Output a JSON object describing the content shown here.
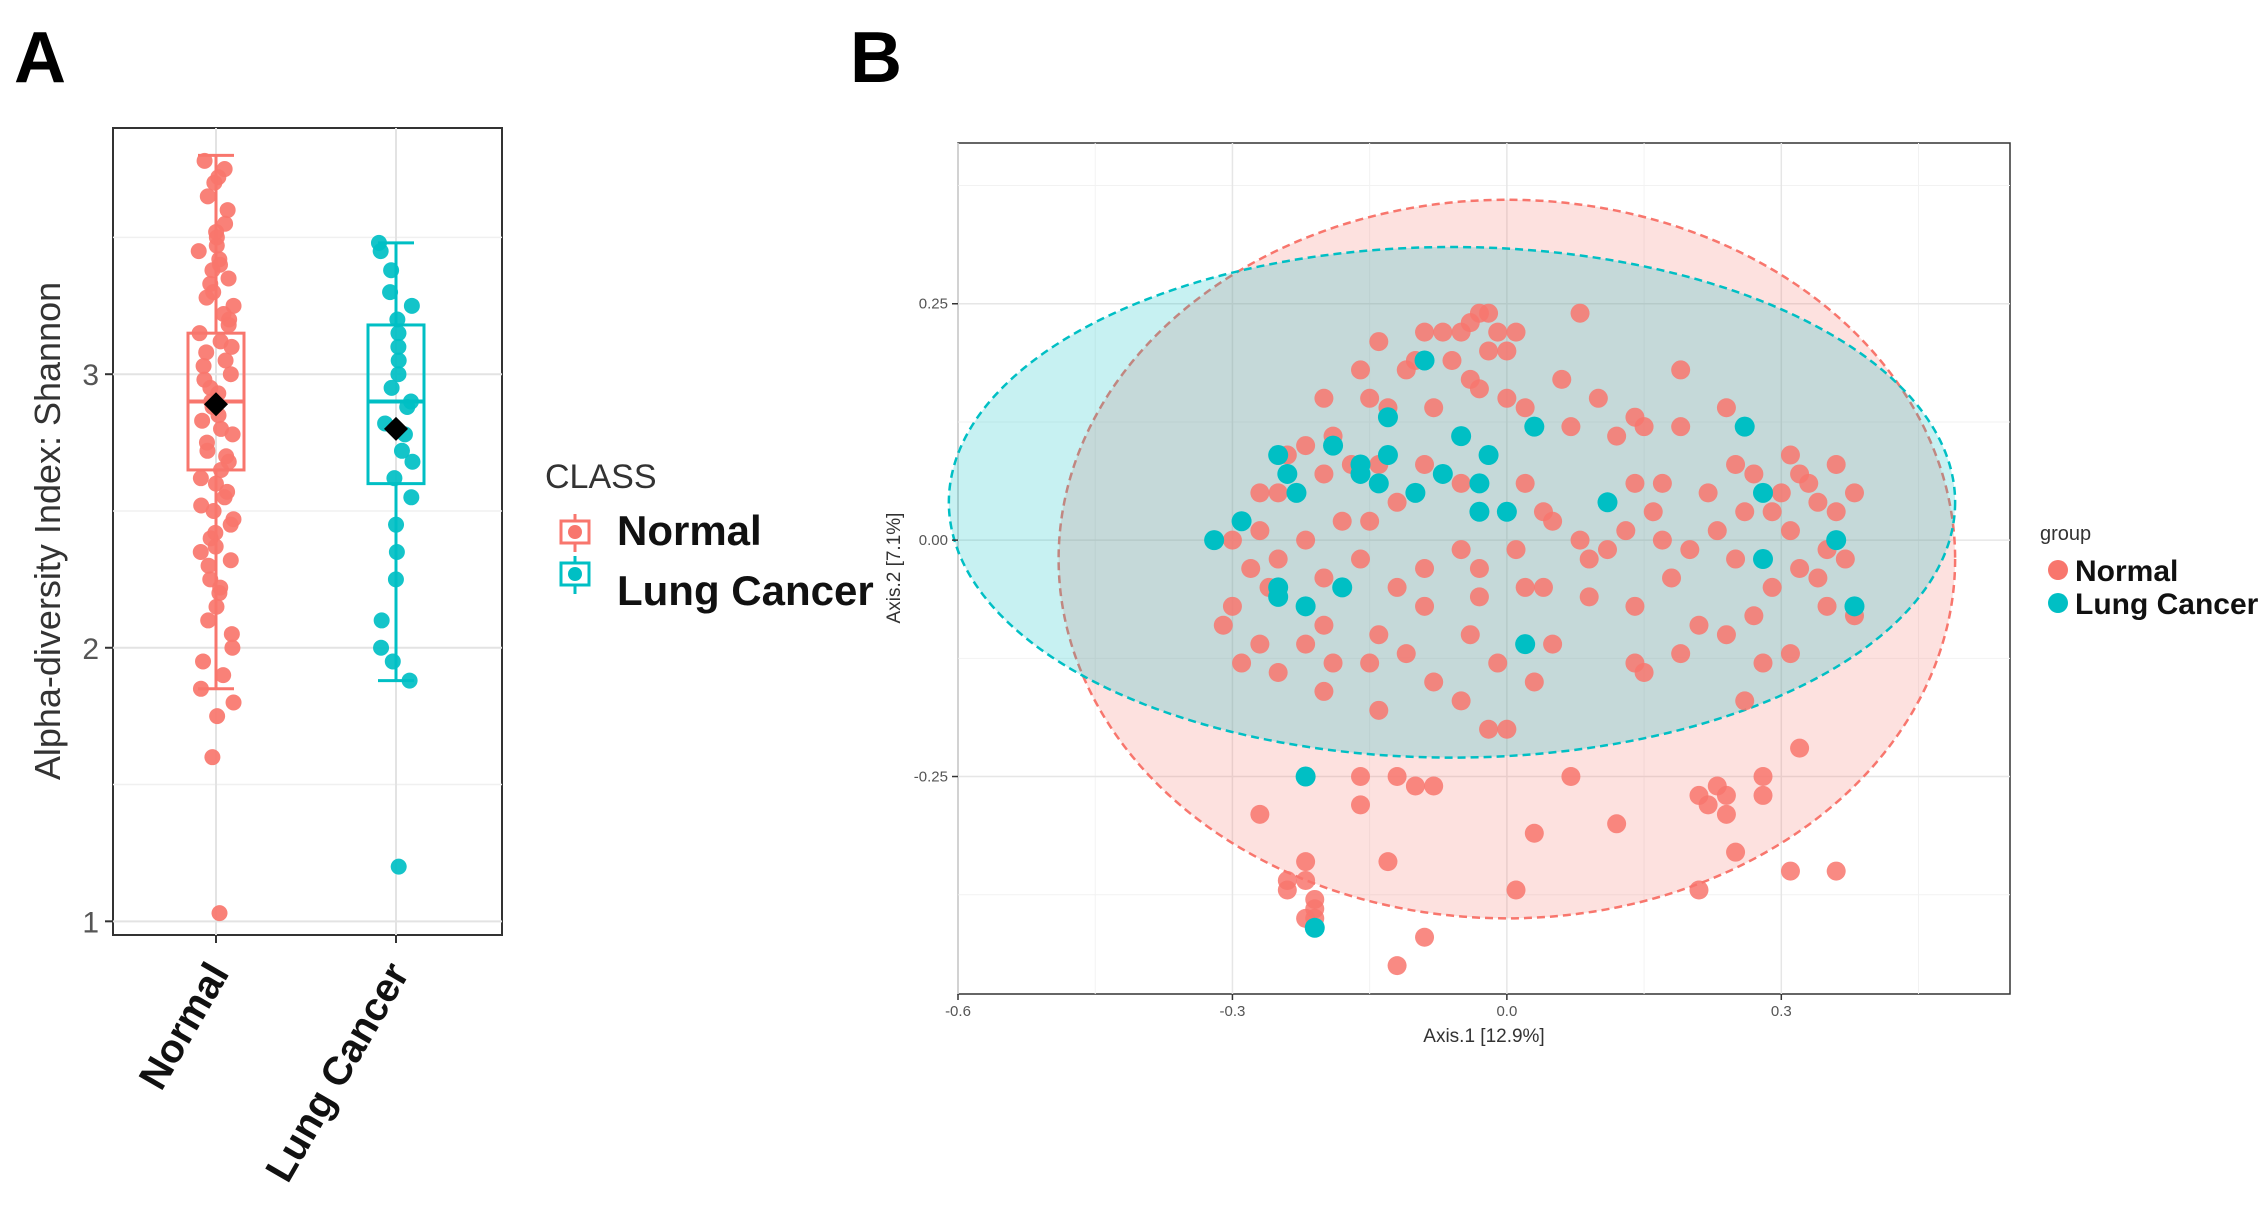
{
  "panels": {
    "a": {
      "letter": "A"
    },
    "b": {
      "letter": "B"
    }
  },
  "colors": {
    "normal": "#F8766D",
    "lung_cancer": "#00BFC4",
    "mean_marker": "#000000"
  },
  "chart_data": [
    {
      "type": "boxplot",
      "ylabel": "Alpha-diversity Index: Shannon",
      "categories": [
        "Normal",
        "Lung Cancer"
      ],
      "ylim": [
        0.95,
        3.9
      ],
      "yticks": [
        1,
        2,
        3
      ],
      "ytick_labels": [
        "1",
        "2",
        "3"
      ],
      "grid": true,
      "legend": {
        "title": "CLASS",
        "position": "right",
        "entries": [
          "Normal",
          "Lung Cancer"
        ]
      },
      "boxes": [
        {
          "category": "Normal",
          "whisker_low": 1.85,
          "q1": 2.65,
          "median": 2.9,
          "q3": 3.15,
          "whisker_high": 3.8,
          "mean": 2.89,
          "outliers": [
            1.6,
            1.03
          ]
        },
        {
          "category": "Lung Cancer",
          "whisker_low": 1.88,
          "q1": 2.6,
          "median": 2.9,
          "q3": 3.18,
          "whisker_high": 3.48,
          "mean": 2.8,
          "outliers": [
            1.2
          ]
        }
      ],
      "points": {
        "Normal": [
          3.78,
          3.75,
          3.72,
          3.7,
          3.65,
          3.6,
          3.55,
          3.52,
          3.5,
          3.47,
          3.45,
          3.42,
          3.4,
          3.38,
          3.35,
          3.33,
          3.3,
          3.28,
          3.25,
          3.22,
          3.2,
          3.18,
          3.15,
          3.12,
          3.1,
          3.08,
          3.05,
          3.03,
          3.0,
          2.98,
          2.95,
          2.93,
          2.9,
          2.88,
          2.85,
          2.83,
          2.8,
          2.78,
          2.75,
          2.72,
          2.7,
          2.68,
          2.65,
          2.62,
          2.6,
          2.57,
          2.55,
          2.52,
          2.5,
          2.47,
          2.45,
          2.42,
          2.4,
          2.37,
          2.35,
          2.32,
          2.3,
          2.25,
          2.22,
          2.2,
          2.15,
          2.1,
          2.05,
          2.0,
          1.95,
          1.9,
          1.85,
          1.8,
          1.75,
          1.6,
          1.03
        ],
        "Lung Cancer": [
          3.48,
          3.45,
          3.38,
          3.3,
          3.25,
          3.2,
          3.15,
          3.1,
          3.05,
          3.0,
          2.95,
          2.9,
          2.88,
          2.82,
          2.78,
          2.72,
          2.68,
          2.62,
          2.55,
          2.45,
          2.35,
          2.25,
          2.1,
          2.0,
          1.95,
          1.88,
          1.2
        ]
      }
    },
    {
      "type": "scatter",
      "xlabel": "Axis.1  [12.9%]",
      "ylabel": "Axis.2  [7.1%]",
      "xlim": [
        -0.6,
        0.55
      ],
      "ylim": [
        -0.48,
        0.42
      ],
      "xticks": [
        -0.6,
        -0.3,
        0.0,
        0.3
      ],
      "xtick_labels": [
        "-0.6",
        "-0.3",
        "0.0",
        "0.3"
      ],
      "yticks": [
        -0.25,
        0.0,
        0.25
      ],
      "ytick_labels": [
        "-0.25",
        "0.00",
        "0.25"
      ],
      "grid": true,
      "legend": {
        "title": "group",
        "position": "right",
        "entries": [
          "Normal",
          "Lung Cancer"
        ]
      },
      "ellipses": [
        {
          "group": "Normal",
          "cx": 0.0,
          "cy": -0.02,
          "rx": 0.49,
          "ry": 0.38
        },
        {
          "group": "Lung Cancer",
          "cx": -0.06,
          "cy": 0.04,
          "rx": 0.55,
          "ry": 0.27
        }
      ],
      "series": [
        {
          "name": "Normal",
          "points": [
            [
              -0.03,
              0.24
            ],
            [
              -0.02,
              0.24
            ],
            [
              0.08,
              0.24
            ],
            [
              -0.04,
              0.23
            ],
            [
              -0.05,
              0.22
            ],
            [
              -0.07,
              0.22
            ],
            [
              -0.09,
              0.22
            ],
            [
              -0.01,
              0.22
            ],
            [
              0.01,
              0.22
            ],
            [
              -0.14,
              0.21
            ],
            [
              -0.02,
              0.2
            ],
            [
              0.0,
              0.2
            ],
            [
              -0.06,
              0.19
            ],
            [
              -0.1,
              0.19
            ],
            [
              -0.16,
              0.18
            ],
            [
              -0.11,
              0.18
            ],
            [
              0.19,
              0.18
            ],
            [
              -0.04,
              0.17
            ],
            [
              -0.03,
              0.16
            ],
            [
              0.06,
              0.17
            ],
            [
              0.1,
              0.15
            ],
            [
              -0.2,
              0.15
            ],
            [
              -0.15,
              0.15
            ],
            [
              0.0,
              0.15
            ],
            [
              0.02,
              0.14
            ],
            [
              -0.13,
              0.14
            ],
            [
              -0.08,
              0.14
            ],
            [
              0.24,
              0.14
            ],
            [
              0.14,
              0.13
            ],
            [
              0.15,
              0.12
            ],
            [
              0.19,
              0.12
            ],
            [
              0.07,
              0.12
            ],
            [
              0.12,
              0.11
            ],
            [
              -0.19,
              0.11
            ],
            [
              -0.22,
              0.1
            ],
            [
              -0.24,
              0.09
            ],
            [
              0.31,
              0.09
            ],
            [
              0.32,
              0.07
            ],
            [
              -0.14,
              0.08
            ],
            [
              -0.09,
              0.08
            ],
            [
              -0.17,
              0.08
            ],
            [
              0.25,
              0.08
            ],
            [
              0.36,
              0.08
            ],
            [
              -0.2,
              0.07
            ],
            [
              0.27,
              0.07
            ],
            [
              0.33,
              0.06
            ],
            [
              -0.05,
              0.06
            ],
            [
              0.02,
              0.06
            ],
            [
              0.14,
              0.06
            ],
            [
              0.17,
              0.06
            ],
            [
              0.3,
              0.05
            ],
            [
              -0.27,
              0.05
            ],
            [
              -0.25,
              0.05
            ],
            [
              0.22,
              0.05
            ],
            [
              0.38,
              0.05
            ],
            [
              0.34,
              0.04
            ],
            [
              -0.12,
              0.04
            ],
            [
              0.16,
              0.03
            ],
            [
              0.04,
              0.03
            ],
            [
              0.26,
              0.03
            ],
            [
              0.29,
              0.03
            ],
            [
              0.36,
              0.03
            ],
            [
              -0.18,
              0.02
            ],
            [
              -0.15,
              0.02
            ],
            [
              0.05,
              0.02
            ],
            [
              0.13,
              0.01
            ],
            [
              0.23,
              0.01
            ],
            [
              0.31,
              0.01
            ],
            [
              -0.27,
              0.01
            ],
            [
              -0.3,
              0.0
            ],
            [
              -0.22,
              0.0
            ],
            [
              0.08,
              0.0
            ],
            [
              0.17,
              0.0
            ],
            [
              -0.05,
              -0.01
            ],
            [
              0.01,
              -0.01
            ],
            [
              0.11,
              -0.01
            ],
            [
              0.2,
              -0.01
            ],
            [
              0.35,
              -0.01
            ],
            [
              -0.25,
              -0.02
            ],
            [
              -0.16,
              -0.02
            ],
            [
              -0.03,
              -0.03
            ],
            [
              0.09,
              -0.02
            ],
            [
              0.25,
              -0.02
            ],
            [
              0.37,
              -0.02
            ],
            [
              -0.28,
              -0.03
            ],
            [
              -0.09,
              -0.03
            ],
            [
              0.32,
              -0.03
            ],
            [
              -0.2,
              -0.04
            ],
            [
              0.02,
              -0.05
            ],
            [
              0.18,
              -0.04
            ],
            [
              0.34,
              -0.04
            ],
            [
              -0.26,
              -0.05
            ],
            [
              -0.12,
              -0.05
            ],
            [
              0.04,
              -0.05
            ],
            [
              0.09,
              -0.06
            ],
            [
              0.29,
              -0.05
            ],
            [
              -0.03,
              -0.06
            ],
            [
              0.35,
              -0.07
            ],
            [
              -0.3,
              -0.07
            ],
            [
              -0.09,
              -0.07
            ],
            [
              0.14,
              -0.07
            ],
            [
              0.27,
              -0.08
            ],
            [
              0.38,
              -0.08
            ],
            [
              -0.31,
              -0.09
            ],
            [
              -0.2,
              -0.09
            ],
            [
              0.21,
              -0.09
            ],
            [
              -0.14,
              -0.1
            ],
            [
              -0.04,
              -0.1
            ],
            [
              -0.27,
              -0.11
            ],
            [
              0.05,
              -0.11
            ],
            [
              -0.22,
              -0.11
            ],
            [
              0.24,
              -0.1
            ],
            [
              -0.11,
              -0.12
            ],
            [
              0.19,
              -0.12
            ],
            [
              0.31,
              -0.12
            ],
            [
              -0.15,
              -0.13
            ],
            [
              -0.29,
              -0.13
            ],
            [
              -0.19,
              -0.13
            ],
            [
              -0.01,
              -0.13
            ],
            [
              0.14,
              -0.13
            ],
            [
              0.28,
              -0.13
            ],
            [
              0.15,
              -0.14
            ],
            [
              -0.25,
              -0.14
            ],
            [
              -0.08,
              -0.15
            ],
            [
              0.03,
              -0.15
            ],
            [
              -0.2,
              -0.16
            ],
            [
              -0.05,
              -0.17
            ],
            [
              0.26,
              -0.17
            ],
            [
              -0.14,
              -0.18
            ],
            [
              -0.02,
              -0.2
            ],
            [
              0.0,
              -0.2
            ],
            [
              -0.16,
              -0.25
            ],
            [
              -0.12,
              -0.25
            ],
            [
              0.07,
              -0.25
            ],
            [
              0.23,
              -0.26
            ],
            [
              0.28,
              -0.25
            ],
            [
              0.32,
              -0.22
            ],
            [
              -0.1,
              -0.26
            ],
            [
              -0.08,
              -0.26
            ],
            [
              0.21,
              -0.27
            ],
            [
              0.24,
              -0.27
            ],
            [
              0.22,
              -0.28
            ],
            [
              0.28,
              -0.27
            ],
            [
              -0.16,
              -0.28
            ],
            [
              0.24,
              -0.29
            ],
            [
              -0.27,
              -0.29
            ],
            [
              0.12,
              -0.3
            ],
            [
              0.03,
              -0.31
            ],
            [
              0.25,
              -0.33
            ],
            [
              -0.22,
              -0.34
            ],
            [
              -0.13,
              -0.34
            ],
            [
              0.31,
              -0.35
            ],
            [
              0.36,
              -0.35
            ],
            [
              -0.24,
              -0.36
            ],
            [
              -0.22,
              -0.36
            ],
            [
              -0.24,
              -0.37
            ],
            [
              0.01,
              -0.37
            ],
            [
              0.21,
              -0.37
            ],
            [
              -0.21,
              -0.38
            ],
            [
              -0.21,
              -0.39
            ],
            [
              -0.22,
              -0.4
            ],
            [
              -0.21,
              -0.4
            ],
            [
              -0.09,
              -0.42
            ],
            [
              -0.12,
              -0.45
            ]
          ]
        },
        {
          "name": "Lung Cancer",
          "points": [
            [
              -0.09,
              0.19
            ],
            [
              -0.13,
              0.13
            ],
            [
              -0.05,
              0.11
            ],
            [
              0.03,
              0.12
            ],
            [
              0.26,
              0.12
            ],
            [
              -0.19,
              0.1
            ],
            [
              -0.02,
              0.09
            ],
            [
              -0.25,
              0.09
            ],
            [
              -0.13,
              0.09
            ],
            [
              -0.16,
              0.08
            ],
            [
              -0.24,
              0.07
            ],
            [
              -0.07,
              0.07
            ],
            [
              -0.16,
              0.07
            ],
            [
              -0.14,
              0.06
            ],
            [
              -0.03,
              0.06
            ],
            [
              -0.23,
              0.05
            ],
            [
              -0.1,
              0.05
            ],
            [
              0.11,
              0.04
            ],
            [
              0.28,
              0.05
            ],
            [
              -0.03,
              0.03
            ],
            [
              0.0,
              0.03
            ],
            [
              -0.29,
              0.02
            ],
            [
              -0.32,
              0.0
            ],
            [
              0.36,
              0.0
            ],
            [
              0.28,
              -0.02
            ],
            [
              -0.18,
              -0.05
            ],
            [
              -0.25,
              -0.05
            ],
            [
              -0.25,
              -0.06
            ],
            [
              -0.22,
              -0.07
            ],
            [
              0.38,
              -0.07
            ],
            [
              0.02,
              -0.11
            ],
            [
              -0.22,
              -0.25
            ],
            [
              -0.21,
              -0.41
            ]
          ]
        }
      ]
    }
  ]
}
